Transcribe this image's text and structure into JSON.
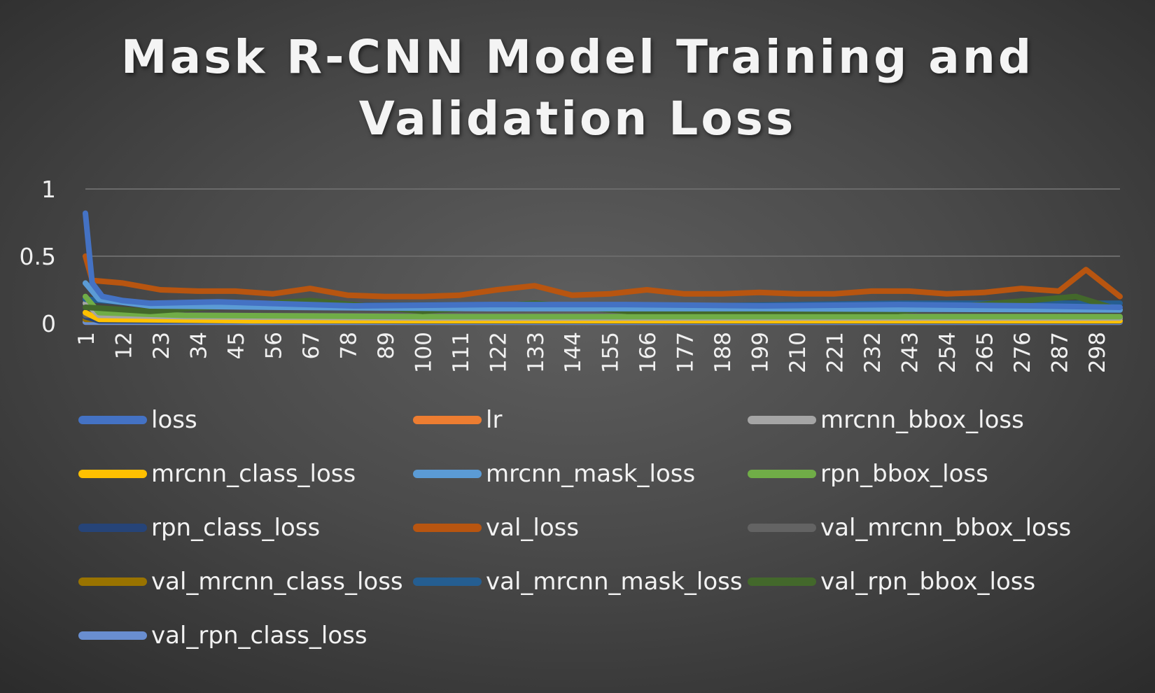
{
  "chart_data": {
    "type": "line",
    "title": "Mask R-CNN Model Training and Validation Loss",
    "ylim": [
      0,
      1
    ],
    "yticks": [
      "0",
      "0.5",
      "1"
    ],
    "xlim": [
      1,
      305
    ],
    "xticks": [
      "1",
      "12",
      "23",
      "34",
      "45",
      "56",
      "67",
      "78",
      "89",
      "100",
      "111",
      "122",
      "133",
      "144",
      "155",
      "166",
      "177",
      "188",
      "199",
      "210",
      "221",
      "232",
      "243",
      "254",
      "265",
      "276",
      "287",
      "298"
    ],
    "grid": "horizontal",
    "legend_position": "bottom",
    "series": [
      {
        "name": "loss",
        "color": "#4472c4",
        "values": [
          [
            1,
            0.82
          ],
          [
            3,
            0.3
          ],
          [
            6,
            0.2
          ],
          [
            12,
            0.17
          ],
          [
            20,
            0.15
          ],
          [
            40,
            0.16
          ],
          [
            80,
            0.13
          ],
          [
            120,
            0.14
          ],
          [
            160,
            0.14
          ],
          [
            200,
            0.13
          ],
          [
            240,
            0.14
          ],
          [
            280,
            0.13
          ],
          [
            305,
            0.12
          ]
        ]
      },
      {
        "name": "lr",
        "color": "#ed7d31",
        "values": [
          [
            1,
            0.01
          ],
          [
            305,
            0.01
          ]
        ]
      },
      {
        "name": "mrcnn_bbox_loss",
        "color": "#a5a5a5",
        "values": [
          [
            1,
            0.15
          ],
          [
            5,
            0.06
          ],
          [
            30,
            0.05
          ],
          [
            100,
            0.04
          ],
          [
            200,
            0.04
          ],
          [
            305,
            0.04
          ]
        ]
      },
      {
        "name": "mrcnn_class_loss",
        "color": "#ffc000",
        "values": [
          [
            1,
            0.08
          ],
          [
            5,
            0.03
          ],
          [
            50,
            0.02
          ],
          [
            150,
            0.02
          ],
          [
            305,
            0.02
          ]
        ]
      },
      {
        "name": "mrcnn_mask_loss",
        "color": "#5b9bd5",
        "values": [
          [
            1,
            0.3
          ],
          [
            5,
            0.18
          ],
          [
            20,
            0.13
          ],
          [
            60,
            0.12
          ],
          [
            120,
            0.11
          ],
          [
            200,
            0.11
          ],
          [
            305,
            0.1
          ]
        ]
      },
      {
        "name": "rpn_bbox_loss",
        "color": "#70ad47",
        "values": [
          [
            1,
            0.2
          ],
          [
            5,
            0.08
          ],
          [
            30,
            0.06
          ],
          [
            100,
            0.05
          ],
          [
            200,
            0.05
          ],
          [
            305,
            0.05
          ]
        ]
      },
      {
        "name": "rpn_class_loss",
        "color": "#264478",
        "values": [
          [
            1,
            0.05
          ],
          [
            5,
            0.02
          ],
          [
            100,
            0.015
          ],
          [
            305,
            0.015
          ]
        ]
      },
      {
        "name": "val_loss",
        "color": "#b85510",
        "values": [
          [
            1,
            0.5
          ],
          [
            3,
            0.32
          ],
          [
            12,
            0.3
          ],
          [
            23,
            0.25
          ],
          [
            34,
            0.24
          ],
          [
            45,
            0.24
          ],
          [
            56,
            0.22
          ],
          [
            67,
            0.26
          ],
          [
            78,
            0.21
          ],
          [
            89,
            0.2
          ],
          [
            100,
            0.2
          ],
          [
            111,
            0.21
          ],
          [
            122,
            0.25
          ],
          [
            133,
            0.28
          ],
          [
            144,
            0.21
          ],
          [
            155,
            0.22
          ],
          [
            166,
            0.25
          ],
          [
            177,
            0.22
          ],
          [
            188,
            0.22
          ],
          [
            199,
            0.23
          ],
          [
            210,
            0.22
          ],
          [
            221,
            0.22
          ],
          [
            232,
            0.24
          ],
          [
            243,
            0.24
          ],
          [
            254,
            0.22
          ],
          [
            265,
            0.23
          ],
          [
            276,
            0.26
          ],
          [
            287,
            0.24
          ],
          [
            295,
            0.4
          ],
          [
            305,
            0.2
          ]
        ]
      },
      {
        "name": "val_mrcnn_bbox_loss",
        "color": "#636363",
        "values": [
          [
            1,
            0.06
          ],
          [
            305,
            0.05
          ]
        ]
      },
      {
        "name": "val_mrcnn_class_loss",
        "color": "#997300",
        "values": [
          [
            1,
            0.03
          ],
          [
            305,
            0.02
          ]
        ]
      },
      {
        "name": "val_mrcnn_mask_loss",
        "color": "#255e91",
        "values": [
          [
            1,
            0.18
          ],
          [
            20,
            0.14
          ],
          [
            60,
            0.13
          ],
          [
            120,
            0.14
          ],
          [
            180,
            0.13
          ],
          [
            240,
            0.15
          ],
          [
            305,
            0.15
          ]
        ]
      },
      {
        "name": "val_rpn_bbox_loss",
        "color": "#43682b",
        "values": [
          [
            1,
            0.12
          ],
          [
            20,
            0.09
          ],
          [
            67,
            0.17
          ],
          [
            100,
            0.09
          ],
          [
            133,
            0.15
          ],
          [
            160,
            0.09
          ],
          [
            200,
            0.09
          ],
          [
            240,
            0.09
          ],
          [
            292,
            0.2
          ],
          [
            305,
            0.1
          ]
        ]
      },
      {
        "name": "val_rpn_class_loss",
        "color": "#698ed0",
        "values": [
          [
            1,
            0.01
          ],
          [
            305,
            0.01
          ]
        ]
      }
    ]
  }
}
